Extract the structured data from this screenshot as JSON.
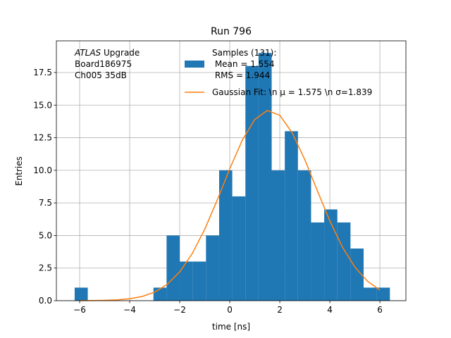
{
  "chart_data": {
    "type": "histogram",
    "title": "Run 796",
    "xlabel": "time [ns]",
    "ylabel": "Entries",
    "annotation": [
      "ATLAS Upgrade",
      " Board186975",
      " Ch005 35dB"
    ],
    "bins": [
      -6.2,
      -5.675,
      -5.15,
      -4.625,
      -4.1,
      -3.575,
      -3.05,
      -2.525,
      -2.0,
      -1.475,
      -0.95,
      -0.425,
      0.1,
      0.625,
      1.15,
      1.675,
      2.2,
      2.725,
      3.25,
      3.775,
      4.3,
      4.825,
      5.35,
      5.875,
      6.4
    ],
    "series": [
      {
        "name": "Samples (131):\n Mean = 1.554\n RMS = 1.944",
        "color": "#1f77b4",
        "values": [
          1,
          0,
          0,
          0,
          0,
          0,
          1,
          5,
          3,
          3,
          5,
          10,
          8,
          18,
          19,
          10,
          13,
          10,
          6,
          7,
          6,
          4,
          1,
          1
        ]
      },
      {
        "name": "Gaussian Fit: \\n μ = 1.575 \\n σ=1.839",
        "color": "#ff7f0e",
        "type": "line",
        "x": [
          -6,
          -5.5,
          -5,
          -4.5,
          -4,
          -3.5,
          -3,
          -2.5,
          -2,
          -1.5,
          -1,
          -0.5,
          0,
          0.5,
          1,
          1.5,
          2,
          2.5,
          3,
          3.5,
          4,
          4.5,
          5,
          5.5,
          6
        ],
        "values": [
          0.003,
          0.009,
          0.024,
          0.062,
          0.147,
          0.324,
          0.66,
          1.25,
          2.21,
          3.61,
          5.48,
          7.72,
          10.12,
          12.31,
          13.9,
          14.59,
          14.22,
          12.86,
          10.81,
          8.44,
          6.12,
          4.12,
          2.58,
          1.5,
          0.81
        ]
      }
    ],
    "xlim": [
      -6.93,
      7.04
    ],
    "ylim": [
      0,
      19.93
    ],
    "xticks": [
      {
        "value": -6,
        "label": "−6"
      },
      {
        "value": -4,
        "label": "−4"
      },
      {
        "value": -2,
        "label": "−2"
      },
      0,
      2,
      4,
      6
    ],
    "yticks": [
      {
        "value": 0,
        "label": "0.0"
      },
      2.5,
      {
        "value": 5,
        "label": "5.0"
      },
      7.5,
      {
        "value": 10,
        "label": "10.0"
      },
      12.5,
      {
        "value": 15,
        "label": "15.0"
      },
      17.5
    ],
    "grid": true,
    "legend": "upper center"
  }
}
